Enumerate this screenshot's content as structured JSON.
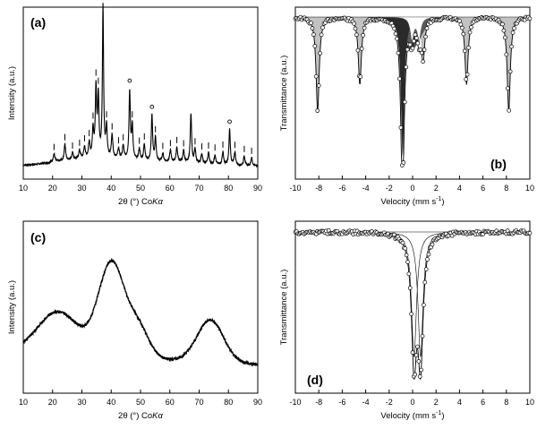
{
  "chart_data": [
    {
      "panel": "(a)",
      "type": "line",
      "xlabel": "2θ (°) CoKα",
      "ylabel": "Intensity (a.u.)",
      "xlim": [
        10,
        90
      ],
      "xticks": [
        10,
        20,
        30,
        40,
        50,
        60,
        70,
        80,
        90
      ],
      "baseline": 0.08,
      "peaks": [
        {
          "x": 20.5,
          "h": 0.05,
          "w": 0.6
        },
        {
          "x": 24.2,
          "h": 0.1,
          "w": 0.5
        },
        {
          "x": 26.8,
          "h": 0.04,
          "w": 0.5
        },
        {
          "x": 29.2,
          "h": 0.05,
          "w": 0.5
        },
        {
          "x": 30.9,
          "h": 0.07,
          "w": 0.5
        },
        {
          "x": 32.5,
          "h": 0.09,
          "w": 0.5
        },
        {
          "x": 33.8,
          "h": 0.17,
          "w": 0.45
        },
        {
          "x": 34.8,
          "h": 0.42,
          "w": 0.45
        },
        {
          "x": 35.6,
          "h": 0.36,
          "w": 0.45
        },
        {
          "x": 37.2,
          "h": 0.92,
          "w": 0.4
        },
        {
          "x": 38.4,
          "h": 0.18,
          "w": 0.45
        },
        {
          "x": 40.3,
          "h": 0.14,
          "w": 0.5
        },
        {
          "x": 42.5,
          "h": 0.06,
          "w": 0.5
        },
        {
          "x": 44.1,
          "h": 0.08,
          "w": 0.5
        },
        {
          "x": 46.3,
          "h": 0.42,
          "w": 0.45
        },
        {
          "x": 47.2,
          "h": 0.2,
          "w": 0.45
        },
        {
          "x": 49.6,
          "h": 0.07,
          "w": 0.5
        },
        {
          "x": 51.3,
          "h": 0.1,
          "w": 0.5
        },
        {
          "x": 53.9,
          "h": 0.28,
          "w": 0.45
        },
        {
          "x": 55.1,
          "h": 0.14,
          "w": 0.45
        },
        {
          "x": 57.6,
          "h": 0.05,
          "w": 0.5
        },
        {
          "x": 60.2,
          "h": 0.07,
          "w": 0.5
        },
        {
          "x": 62.4,
          "h": 0.09,
          "w": 0.5
        },
        {
          "x": 64.7,
          "h": 0.07,
          "w": 0.5
        },
        {
          "x": 67.2,
          "h": 0.3,
          "w": 0.45
        },
        {
          "x": 68.6,
          "h": 0.08,
          "w": 0.5
        },
        {
          "x": 70.9,
          "h": 0.06,
          "w": 0.5
        },
        {
          "x": 73.2,
          "h": 0.07,
          "w": 0.5
        },
        {
          "x": 75.4,
          "h": 0.06,
          "w": 0.5
        },
        {
          "x": 78.1,
          "h": 0.08,
          "w": 0.5
        },
        {
          "x": 80.4,
          "h": 0.22,
          "w": 0.45
        },
        {
          "x": 82.2,
          "h": 0.08,
          "w": 0.5
        },
        {
          "x": 85.4,
          "h": 0.06,
          "w": 0.5
        },
        {
          "x": 87.9,
          "h": 0.05,
          "w": 0.5
        }
      ],
      "tick_markers_x": [
        20.5,
        24.2,
        26.8,
        29.2,
        30.9,
        32.5,
        33.8,
        34.8,
        35.6,
        38.4,
        40.3,
        42.5,
        44.1,
        47.2,
        49.6,
        51.3,
        55.1,
        57.6,
        60.2,
        62.4,
        64.7,
        68.6,
        70.9,
        73.2,
        75.4,
        78.1,
        82.2,
        85.4,
        87.9
      ],
      "circle_markers_x": [
        46.3,
        53.9,
        80.4
      ]
    },
    {
      "panel": "(b)",
      "type": "scatter",
      "xlabel": "Velocity (mm s-1)",
      "ylabel": "Transmittance (a.u.)",
      "xlim": [
        -10,
        10
      ],
      "xticks": [
        -10,
        -8,
        -6,
        -4,
        -2,
        0,
        2,
        4,
        6,
        8,
        10
      ],
      "sextet": {
        "lines": [
          -8.1,
          -4.5,
          -0.9,
          0.9,
          4.6,
          8.2
        ],
        "depths": [
          0.62,
          0.44,
          0.25,
          0.25,
          0.44,
          0.62
        ],
        "width": 0.16
      },
      "dark_component": {
        "center": -0.85,
        "depth": 0.92,
        "width": 0.18
      },
      "doublet": {
        "lines": [
          -0.05,
          0.55
        ],
        "depths": [
          0.15,
          0.15
        ],
        "width": 0.18
      }
    },
    {
      "panel": "(c)",
      "type": "line",
      "xlabel": "2θ (°) CoKα",
      "ylabel": "Intensity (a.u.)",
      "xlim": [
        10,
        90
      ],
      "xticks": [
        10,
        20,
        30,
        40,
        50,
        60,
        70,
        80,
        90
      ],
      "bumps": [
        {
          "x": 22,
          "h": 0.26,
          "w": 7
        },
        {
          "x": 40.2,
          "h": 0.58,
          "w": 4.5
        },
        {
          "x": 49.5,
          "h": 0.17,
          "w": 3.5
        },
        {
          "x": 73.8,
          "h": 0.26,
          "w": 4.5
        }
      ]
    },
    {
      "panel": "(d)",
      "type": "scatter",
      "xlabel": "Velocity (mm s-1)",
      "ylabel": "Transmittance (a.u.)",
      "xlim": [
        -10,
        10
      ],
      "xticks": [
        -10,
        -8,
        -6,
        -4,
        -2,
        0,
        2,
        4,
        6,
        8,
        10
      ],
      "doublet": {
        "lines": [
          0.12,
          0.68
        ],
        "depths": [
          0.83,
          0.83
        ],
        "width": 0.26
      }
    }
  ],
  "labels": {
    "a": "(a)",
    "b": "(b)",
    "c": "(c)",
    "d": "(d)",
    "xrd_xlabel_main": "2θ (°) Co",
    "xrd_xlabel_k": "K",
    "xrd_xlabel_alpha": "α",
    "xrd_ylabel": "Intensity (a.u.)",
    "moss_xlabel_main": "Velocity (mm s",
    "moss_xlabel_sup": "-1",
    "moss_xlabel_end": ")",
    "moss_ylabel": "Transmittance (a.u.)"
  },
  "colors": {
    "line": "#000000",
    "fill_light": "#c2c2c2",
    "fill_dark": "#5a5a5a",
    "fill_darkest": "#2a2a2a"
  }
}
